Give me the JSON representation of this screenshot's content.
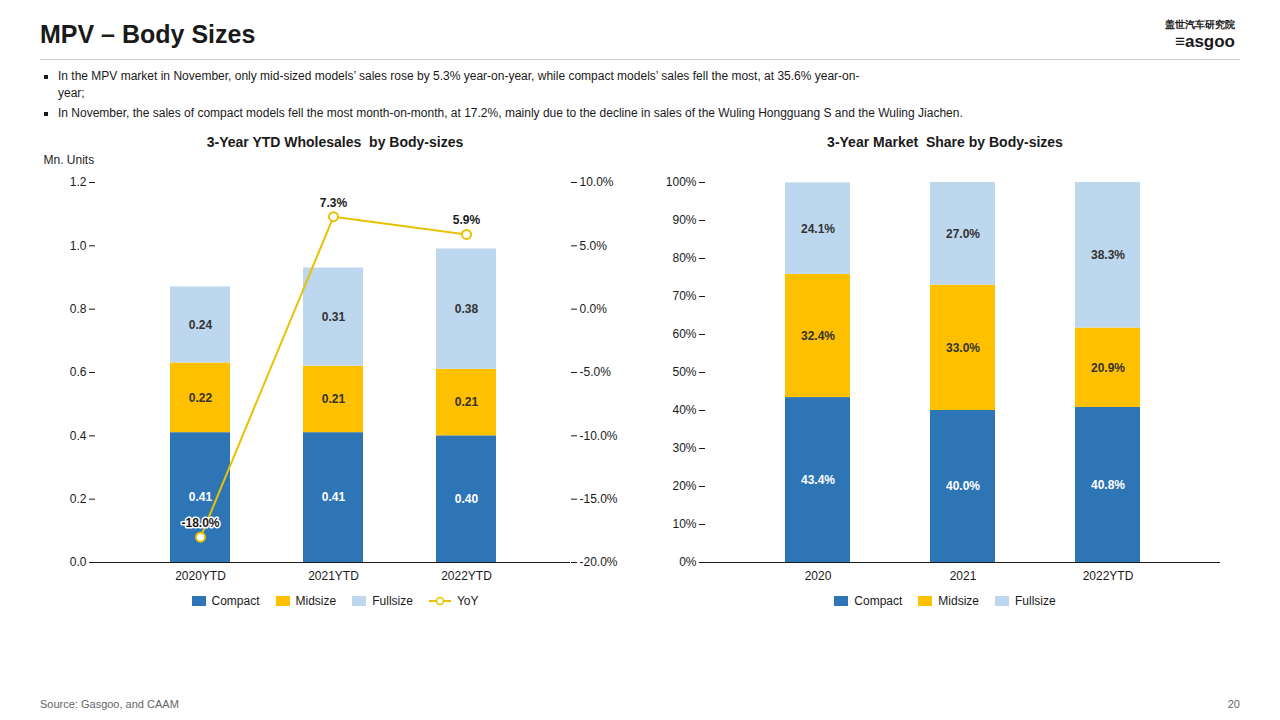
{
  "title": "MPV – Body Sizes",
  "subtitle": [
    [
      "In the MPV market in November, only mid-sized models’ sales rose by 5.3% year-on-year, while compact models’ sales fell the most, at 35.6% year-on-",
      "year;"
    ],
    [
      "In November, the sales of compact models fell the most month-on-month, at 17.2%, mainly due to the decline in sales of the Wuling Hongguang S and the Wuling Jiachen."
    ]
  ],
  "annotations": [
    "盖世汽车研究院",
    "≡asgoo",
    "Source: Gasgoo, and CAAM",
    "20"
  ],
  "chart_data": [
    {
      "type": "bar",
      "title": "3-Year YTD Wholesales  by Body-sizes",
      "ylabel": "Mn. Units",
      "categories": [
        "2020YTD",
        "2021YTD",
        "2022YTD"
      ],
      "stacked": true,
      "data_labels": true,
      "grid": false,
      "legend": "bottom",
      "ylim": [
        0,
        1.2
      ],
      "yticks": [
        {
          "value": 0,
          "label": "0.0"
        },
        0.2,
        0.4,
        0.6,
        0.8,
        {
          "value": 1,
          "label": "1.0"
        },
        1.2
      ],
      "y2lim": [
        -0.2,
        0.1
      ],
      "y2ticks": [
        {
          "value": -0.2,
          "label": "-20.0%"
        },
        {
          "value": -0.15,
          "label": "-15.0%"
        },
        {
          "value": -0.1,
          "label": "-10.0%"
        },
        {
          "value": -0.05,
          "label": "-5.0%"
        },
        {
          "value": 0,
          "label": "0.0%"
        },
        {
          "value": 0.05,
          "label": "5.0%"
        },
        {
          "value": 0.1,
          "label": "10.0%"
        }
      ],
      "series": [
        {
          "name": "Compact",
          "color": "#2E75B6",
          "values": [
            0.41,
            0.41,
            0.4
          ],
          "value_labels": [
            "0.41",
            "0.41",
            "0.40"
          ]
        },
        {
          "name": "Midsize",
          "color": "#FFC000",
          "values": [
            0.22,
            0.21,
            0.21
          ],
          "value_labels": [
            "0.22",
            "0.21",
            "0.21"
          ]
        },
        {
          "name": "Fullsize",
          "color": "#BDD7EE",
          "values": [
            0.24,
            0.31,
            0.38
          ],
          "value_labels": [
            "0.24",
            "0.31",
            "0.38"
          ]
        },
        {
          "name": "YoY",
          "type": "line",
          "axis": "y2",
          "color": "#E8C200",
          "marker": "circle",
          "values": [
            -0.18,
            0.073,
            0.059
          ],
          "value_labels": [
            "-18.0%",
            "7.3%",
            "5.9%"
          ]
        }
      ]
    },
    {
      "type": "bar",
      "title": "3-Year Market  Share by Body-sizes",
      "categories": [
        "2020",
        "2021",
        "2022YTD"
      ],
      "stacked": true,
      "data_labels": true,
      "grid": false,
      "legend": "bottom",
      "ylim": [
        0,
        100
      ],
      "yticks": [
        {
          "value": 0,
          "label": "0%"
        },
        {
          "value": 10,
          "label": "10%"
        },
        {
          "value": 20,
          "label": "20%"
        },
        {
          "value": 30,
          "label": "30%"
        },
        {
          "value": 40,
          "label": "40%"
        },
        {
          "value": 50,
          "label": "50%"
        },
        {
          "value": 60,
          "label": "60%"
        },
        {
          "value": 70,
          "label": "70%"
        },
        {
          "value": 80,
          "label": "80%"
        },
        {
          "value": 90,
          "label": "90%"
        },
        {
          "value": 100,
          "label": "100%"
        }
      ],
      "series": [
        {
          "name": "Compact",
          "color": "#2E75B6",
          "values": [
            43.4,
            40.0,
            40.8
          ],
          "value_labels": [
            "43.4%",
            "40.0%",
            "40.8%"
          ]
        },
        {
          "name": "Midsize",
          "color": "#FFC000",
          "values": [
            32.4,
            33.0,
            20.9
          ],
          "value_labels": [
            "32.4%",
            "33.0%",
            "20.9%"
          ]
        },
        {
          "name": "Fullsize",
          "color": "#BDD7EE",
          "values": [
            24.1,
            27.0,
            38.3
          ],
          "value_labels": [
            "24.1%",
            "27.0%",
            "38.3%"
          ]
        }
      ]
    }
  ]
}
